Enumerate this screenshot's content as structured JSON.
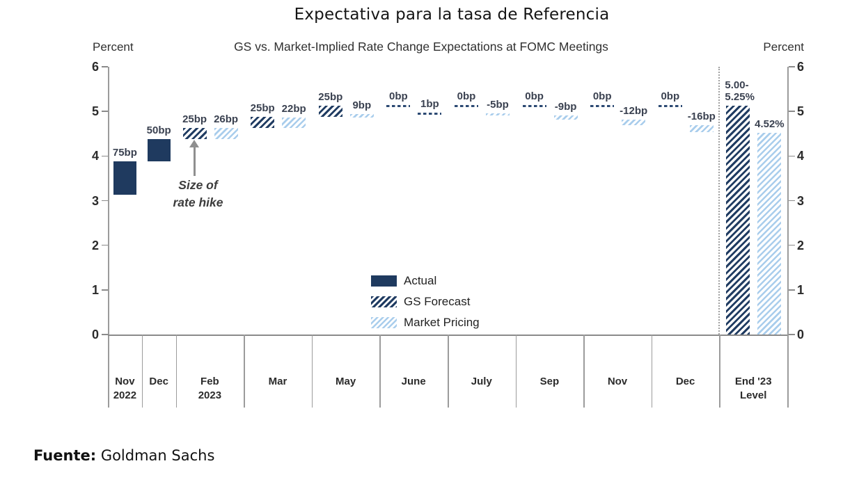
{
  "page": {
    "title": "Expectativa para la tasa de Referencia",
    "source_label": "Fuente:",
    "source_value": "Goldman Sachs"
  },
  "chart_data": {
    "type": "bar",
    "title": "GS vs. Market-Implied Rate Change Expectations at FOMC Meetings",
    "unit_label": "Percent",
    "ylabel": "Percent",
    "ylim": [
      0,
      6
    ],
    "yticks": [
      0,
      1,
      2,
      3,
      4,
      5,
      6
    ],
    "grid": false,
    "legend_position": "center",
    "legend": [
      {
        "series": "actual",
        "label": "Actual"
      },
      {
        "series": "gs_forecast",
        "label": "GS Forecast"
      },
      {
        "series": "market_pricing",
        "label": "Market Pricing"
      }
    ],
    "annotation": {
      "text": "Size of\nrate hike",
      "points_to": "Feb 2023 GS Forecast bar"
    },
    "colors": {
      "navy": "#1f3a5f",
      "light_blue": "#a9cdec",
      "axis_gray": "#9b9b9b"
    },
    "groups": [
      {
        "label": "Nov\n2022",
        "bars": [
          {
            "series": "actual",
            "label": "75bp",
            "from": 3.125,
            "to": 3.875
          }
        ]
      },
      {
        "label": "Dec",
        "bars": [
          {
            "series": "actual",
            "label": "50bp",
            "from": 3.875,
            "to": 4.375
          }
        ]
      },
      {
        "label": "Feb\n2023",
        "bars": [
          {
            "series": "gs_forecast",
            "label": "25bp",
            "from": 4.375,
            "to": 4.625
          },
          {
            "series": "market_pricing",
            "label": "26bp",
            "from": 4.375,
            "to": 4.635
          }
        ]
      },
      {
        "label": "Mar",
        "bars": [
          {
            "series": "gs_forecast",
            "label": "25bp",
            "from": 4.625,
            "to": 4.875
          },
          {
            "series": "market_pricing",
            "label": "22bp",
            "from": 4.635,
            "to": 4.855
          }
        ]
      },
      {
        "label": "May",
        "bars": [
          {
            "series": "gs_forecast",
            "label": "25bp",
            "from": 4.875,
            "to": 5.125
          },
          {
            "series": "market_pricing",
            "label": "9bp",
            "from": 4.855,
            "to": 4.945
          }
        ]
      },
      {
        "label": "June",
        "bars": [
          {
            "series": "gs_forecast",
            "label": "0bp",
            "from": 5.125,
            "to": 5.125
          },
          {
            "series": "market_pricing",
            "label": "1bp",
            "from": 4.945,
            "to": 4.955
          }
        ]
      },
      {
        "label": "July",
        "bars": [
          {
            "series": "gs_forecast",
            "label": "0bp",
            "from": 5.125,
            "to": 5.125
          },
          {
            "series": "market_pricing",
            "label": "-5bp",
            "from": 4.905,
            "to": 4.955
          }
        ]
      },
      {
        "label": "Sep",
        "bars": [
          {
            "series": "gs_forecast",
            "label": "0bp",
            "from": 5.125,
            "to": 5.125
          },
          {
            "series": "market_pricing",
            "label": "-9bp",
            "from": 4.815,
            "to": 4.905
          }
        ]
      },
      {
        "label": "Nov",
        "bars": [
          {
            "series": "gs_forecast",
            "label": "0bp",
            "from": 5.125,
            "to": 5.125
          },
          {
            "series": "market_pricing",
            "label": "-12bp",
            "from": 4.695,
            "to": 4.815
          }
        ]
      },
      {
        "label": "Dec",
        "bars": [
          {
            "series": "gs_forecast",
            "label": "0bp",
            "from": 5.125,
            "to": 5.125
          },
          {
            "series": "market_pricing",
            "label": "-16bp",
            "from": 4.535,
            "to": 4.695
          }
        ]
      },
      {
        "label": "End '23\nLevel",
        "separator_before": "dotted",
        "bars": [
          {
            "series": "gs_forecast",
            "label": "5.00-\n5.25%",
            "from": 0,
            "to": 5.125,
            "label_align": "left"
          },
          {
            "series": "market_pricing",
            "label": "4.52%",
            "from": 0,
            "to": 4.52
          }
        ]
      }
    ]
  }
}
